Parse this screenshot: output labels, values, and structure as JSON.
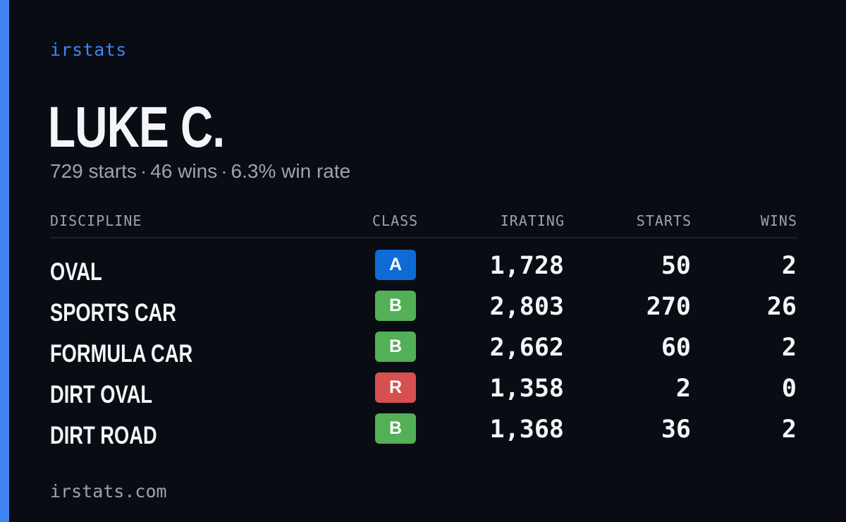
{
  "brand": "irstats",
  "profile": {
    "name": "LUKE C.",
    "starts": "729 starts",
    "wins": "46 wins",
    "win_rate": "6.3% win rate",
    "separator": "·"
  },
  "table": {
    "headers": {
      "discipline": "DISCIPLINE",
      "class": "CLASS",
      "irating": "IRATING",
      "starts": "STARTS",
      "wins": "WINS"
    },
    "rows": [
      {
        "discipline": "OVAL",
        "class": "A",
        "class_color": "#0e6bd6",
        "irating": "1,728",
        "starts": "50",
        "wins": "2"
      },
      {
        "discipline": "SPORTS CAR",
        "class": "B",
        "class_color": "#52b056",
        "irating": "2,803",
        "starts": "270",
        "wins": "26"
      },
      {
        "discipline": "FORMULA CAR",
        "class": "B",
        "class_color": "#52b056",
        "irating": "2,662",
        "starts": "60",
        "wins": "2"
      },
      {
        "discipline": "DIRT OVAL",
        "class": "R",
        "class_color": "#d5504f",
        "irating": "1,358",
        "starts": "2",
        "wins": "0"
      },
      {
        "discipline": "DIRT ROAD",
        "class": "B",
        "class_color": "#52b056",
        "irating": "1,368",
        "starts": "36",
        "wins": "2"
      }
    ]
  },
  "footer": "irstats.com",
  "colors": {
    "background": "#0a0c13",
    "accent": "#3f84f2",
    "text": "#f4f5f8",
    "muted": "#9aa3b2"
  }
}
